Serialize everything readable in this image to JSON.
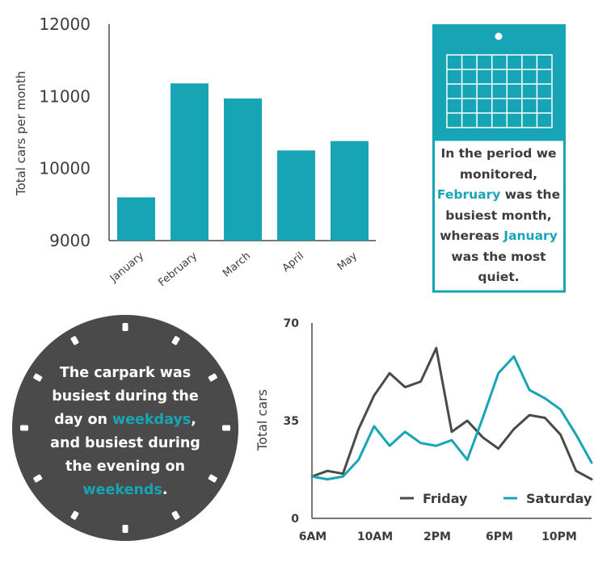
{
  "colors": {
    "teal": "#17a5b5",
    "dark": "#4a4a4a",
    "text": "#3c3c3c"
  },
  "chart_data": [
    {
      "type": "bar",
      "categories": [
        "January",
        "February",
        "March",
        "April",
        "May"
      ],
      "values": [
        9600,
        11180,
        10970,
        10250,
        10380
      ],
      "ylabel": "Total cars per month",
      "yticks": [
        "12000",
        "11000",
        "10000",
        "9000"
      ],
      "ylim": [
        9000,
        12000
      ],
      "grid": false
    },
    {
      "type": "line",
      "ylabel": "Total cars",
      "yticks": [
        "70",
        "35",
        "0"
      ],
      "ylim": [
        0,
        70
      ],
      "xticks": [
        "6AM",
        "10AM",
        "2PM",
        "6PM",
        "10PM"
      ],
      "series": [
        {
          "name": "Friday",
          "color": "#4a4a4a",
          "values": [
            15,
            17,
            16,
            32,
            44,
            52,
            47,
            49,
            61,
            31,
            35,
            29,
            25,
            32,
            37,
            36,
            30,
            17,
            14
          ]
        },
        {
          "name": "Saturday",
          "color": "#17a5b5",
          "values": [
            15,
            14,
            15,
            21,
            33,
            26,
            31,
            27,
            26,
            28,
            21,
            36,
            52,
            58,
            46,
            43,
            39,
            30,
            20
          ]
        }
      ],
      "legend_position": "bottom-right",
      "grid": false
    }
  ],
  "calendar_note": {
    "l1": "In the period we",
    "l2": "monitored,",
    "l3a": "February",
    "l3b": " was the",
    "l4": "busiest month,",
    "l5a": "whereas ",
    "l5b": "January",
    "l6": "was the most",
    "l7": "quiet."
  },
  "clock_note": {
    "l1": "The carpark was",
    "l2": "busiest during the",
    "l3a": "day on ",
    "l3b": "weekdays",
    "l3c": ",",
    "l4": "and busiest during",
    "l5": "the evening on",
    "l6a": "weekends",
    "l6b": "."
  }
}
